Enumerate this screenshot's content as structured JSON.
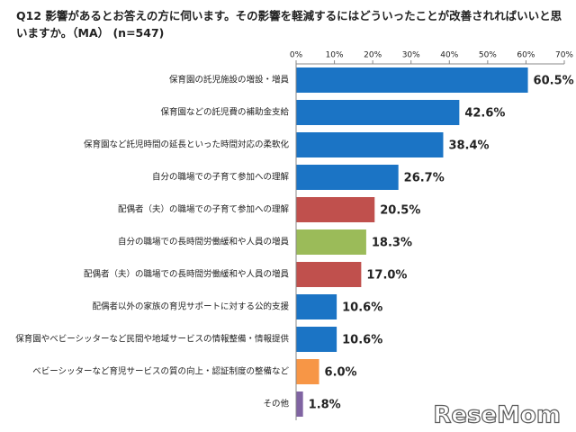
{
  "chart_data": {
    "type": "bar",
    "orientation": "horizontal",
    "title": "Q12 影響があるとお答えの方に伺います。その影響を軽減するにはどういったことが改善されればいいと思いますか。（MA） (n=547)",
    "categories": [
      "保育園の託児施設の増設・増員",
      "保育園などの託児費の補助金支給",
      "保育園など託児時間の延長といった時間対応の柔軟化",
      "自分の職場での子育て参加への理解",
      "配偶者（夫）の職場での子育て参加への理解",
      "自分の職場での長時間労働緩和や人員の増員",
      "配偶者（夫）の職場での長時間労働緩和や人員の増員",
      "配偶者以外の家族の育児サポートに対する公的支援",
      "保育園やベビーシッターなど民間や地域サービスの情報整備・情報提供",
      "ベビーシッターなど育児サービスの質の向上・認証制度の整備など",
      "その他"
    ],
    "values": [
      60.5,
      42.6,
      38.4,
      26.7,
      20.5,
      18.3,
      17.0,
      10.6,
      10.6,
      6.0,
      1.8
    ],
    "value_labels": [
      "60.5%",
      "42.6%",
      "38.4%",
      "26.7%",
      "20.5%",
      "18.3%",
      "17.0%",
      "10.6%",
      "10.6%",
      "6.0%",
      "1.8%"
    ],
    "colors": [
      "#1b74c5",
      "#1b74c5",
      "#1b74c5",
      "#1b74c5",
      "#c0504d",
      "#9bbb59",
      "#c0504d",
      "#1b74c5",
      "#1b74c5",
      "#f79646",
      "#8064a2"
    ],
    "xlim": [
      0,
      70
    ],
    "xticks": [
      {
        "value": 0,
        "label": "0%"
      },
      {
        "value": 10,
        "label": "10%"
      },
      {
        "value": 20,
        "label": "20%"
      },
      {
        "value": 30,
        "label": "30%"
      },
      {
        "value": 40,
        "label": "40%"
      },
      {
        "value": 50,
        "label": "50%"
      },
      {
        "value": 60,
        "label": "60%"
      },
      {
        "value": 70,
        "label": "70%"
      }
    ],
    "watermark": "ReseMom"
  }
}
